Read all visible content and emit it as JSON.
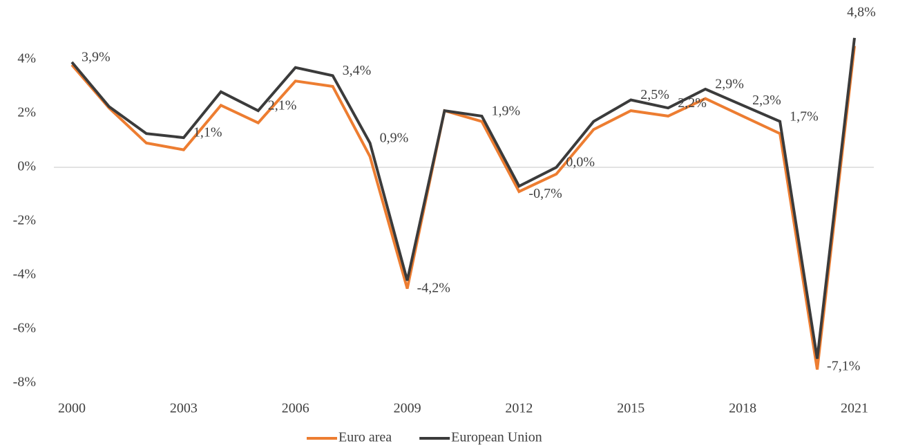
{
  "chart_data": {
    "type": "line",
    "x": [
      2000,
      2001,
      2002,
      2003,
      2004,
      2005,
      2006,
      2007,
      2008,
      2009,
      2010,
      2011,
      2012,
      2013,
      2014,
      2015,
      2016,
      2017,
      2018,
      2019,
      2020,
      2021
    ],
    "xlim": [
      2000,
      2021
    ],
    "xticks": [
      2000,
      2003,
      2006,
      2009,
      2012,
      2015,
      2018,
      2021
    ],
    "ylim": [
      -8,
      5
    ],
    "yticks": [
      {
        "value": -8,
        "label": "-8%"
      },
      {
        "value": -6,
        "label": "-6%"
      },
      {
        "value": -4,
        "label": "-4%"
      },
      {
        "value": -2,
        "label": "-2%"
      },
      {
        "value": 0,
        "label": "0%"
      },
      {
        "value": 2,
        "label": "2%"
      },
      {
        "value": 4,
        "label": "4%"
      }
    ],
    "grid": false,
    "legend": "bottom",
    "series": [
      {
        "name": "Euro area",
        "color": "#ed7d31",
        "values": [
          3.8,
          2.2,
          0.9,
          0.65,
          2.3,
          1.65,
          3.2,
          3.0,
          0.4,
          -4.5,
          2.1,
          1.7,
          -0.9,
          -0.25,
          1.4,
          2.1,
          1.9,
          2.55,
          1.9,
          1.25,
          -7.5,
          4.5
        ]
      },
      {
        "name": "European Union",
        "color": "#3b3b3b",
        "values": [
          3.9,
          2.25,
          1.25,
          1.1,
          2.8,
          2.1,
          3.7,
          3.4,
          0.9,
          -4.2,
          2.1,
          1.9,
          -0.7,
          0.0,
          1.7,
          2.5,
          2.2,
          2.9,
          2.3,
          1.7,
          -7.1,
          4.8
        ],
        "value_labels": [
          "3,9%",
          null,
          null,
          "1,1%",
          null,
          "2,1%",
          null,
          "3,4%",
          "0,9%",
          "-4,2%",
          null,
          "1,9%",
          "-0,7%",
          "0,0%",
          null,
          "2,5%",
          "2,2%",
          "2,9%",
          "2,3%",
          "1,7%",
          "-7,1%",
          "4,8%"
        ]
      }
    ]
  }
}
